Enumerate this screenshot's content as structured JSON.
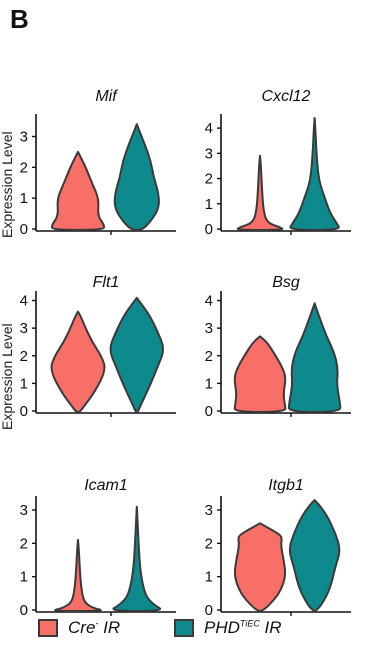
{
  "panel_label": "B",
  "y_axis_title": "Expression Level",
  "colors": {
    "cre": "#f76f66",
    "phd": "#0e8a8c",
    "outline": "#3a3a3a"
  },
  "legend": {
    "cre": {
      "text": "Cre",
      "sup": "-",
      "suffix": " IR"
    },
    "phd": {
      "text": "PHD",
      "sup": "TiEC",
      "suffix": " IR"
    }
  },
  "chart_data": [
    {
      "type": "violin",
      "title": "Mif",
      "ylim": [
        0,
        3.6
      ],
      "yticks": [
        0,
        1,
        2,
        3
      ],
      "groups": [
        "Cre- IR",
        "PHDTiEC IR"
      ],
      "max": [
        2.5,
        3.4
      ]
    },
    {
      "type": "violin",
      "title": "Cxcl12",
      "ylim": [
        0,
        4.4
      ],
      "yticks": [
        0,
        1,
        2,
        3,
        4
      ],
      "groups": [
        "Cre- IR",
        "PHDTiEC IR"
      ],
      "max": [
        2.9,
        4.4
      ]
    },
    {
      "type": "violin",
      "title": "Flt1",
      "ylim": [
        0,
        4.2
      ],
      "yticks": [
        0,
        1,
        2,
        3,
        4
      ],
      "groups": [
        "Cre- IR",
        "PHDTiEC IR"
      ],
      "max": [
        3.6,
        4.1
      ]
    },
    {
      "type": "violin",
      "title": "Bsg",
      "ylim": [
        0,
        4.2
      ],
      "yticks": [
        0,
        1,
        2,
        3,
        4
      ],
      "groups": [
        "Cre- IR",
        "PHDTiEC IR"
      ],
      "max": [
        2.7,
        3.9
      ]
    },
    {
      "type": "violin",
      "title": "Icam1",
      "ylim": [
        0,
        3.3
      ],
      "yticks": [
        0,
        1,
        2,
        3
      ],
      "groups": [
        "Cre- IR",
        "PHDTiEC IR"
      ],
      "max": [
        2.1,
        3.1
      ]
    },
    {
      "type": "violin",
      "title": "Itgb1",
      "ylim": [
        0,
        3.3
      ],
      "yticks": [
        0,
        1,
        2,
        3
      ],
      "groups": [
        "Cre- IR",
        "PHDTiEC IR"
      ],
      "max": [
        2.6,
        3.3
      ]
    }
  ]
}
